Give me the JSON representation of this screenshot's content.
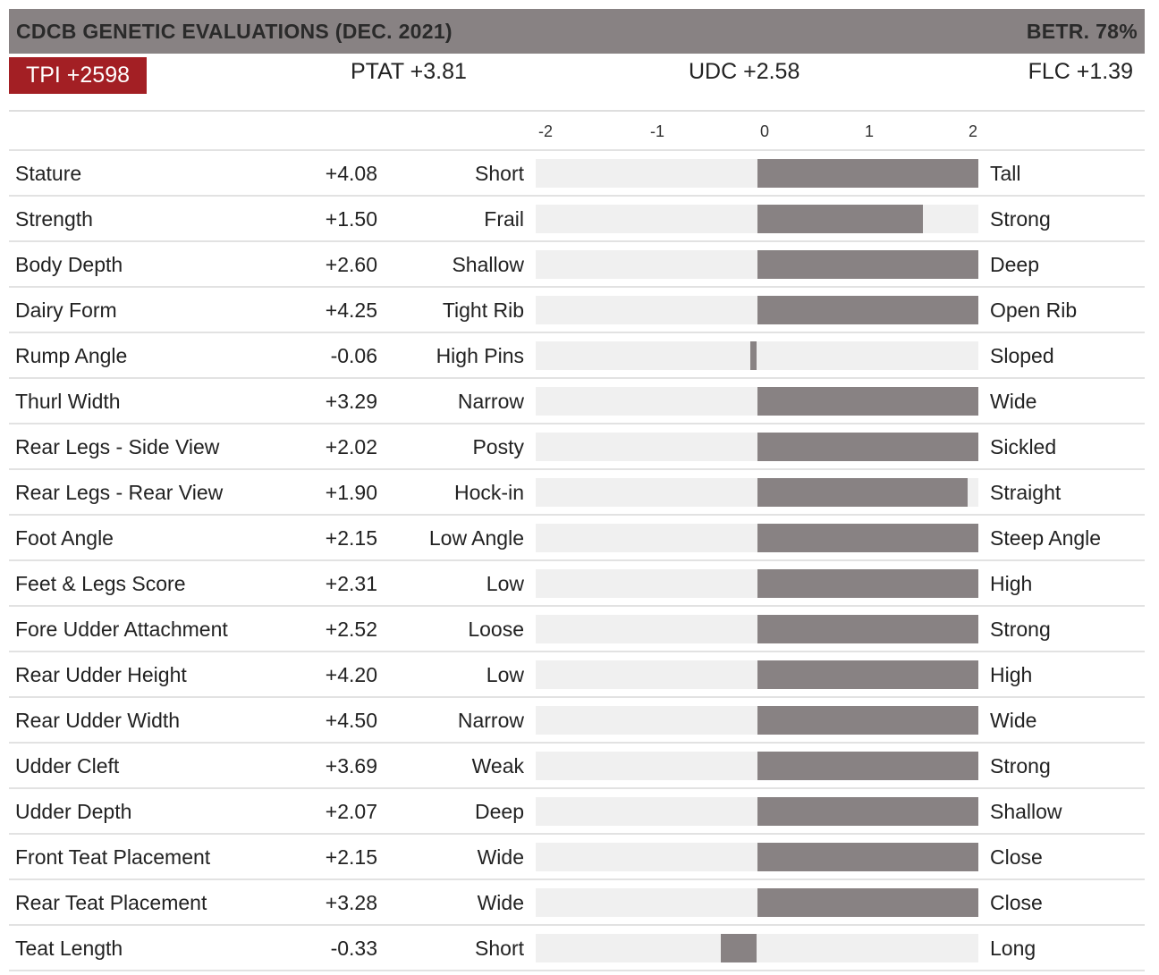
{
  "header": {
    "title": "CDCB GENETIC EVALUATIONS (DEC. 2021)",
    "reliability": "BETR. 78%"
  },
  "scores": {
    "tpi": "TPI +2598",
    "ptat": "PTAT +3.81",
    "udc": "UDC +2.58",
    "flc": "FLC +1.39"
  },
  "colors": {
    "header_bg": "#888283",
    "tpi_bg": "#a31f24",
    "bar": "#888283",
    "track": "#f0f0f0"
  },
  "chart_data": {
    "type": "bar",
    "orientation": "horizontal",
    "xlim": [
      -2,
      2
    ],
    "clipped_to_axis": true,
    "x_ticks": [
      "-2",
      "-1",
      "0",
      "1",
      "2"
    ],
    "traits": [
      {
        "name": "Stature",
        "value": 4.08,
        "label": "+4.08",
        "low": "Short",
        "high": "Tall"
      },
      {
        "name": "Strength",
        "value": 1.5,
        "label": "+1.50",
        "low": "Frail",
        "high": "Strong"
      },
      {
        "name": "Body Depth",
        "value": 2.6,
        "label": "+2.60",
        "low": "Shallow",
        "high": "Deep"
      },
      {
        "name": "Dairy Form",
        "value": 4.25,
        "label": "+4.25",
        "low": "Tight Rib",
        "high": "Open Rib"
      },
      {
        "name": "Rump Angle",
        "value": -0.06,
        "label": "-0.06",
        "low": "High Pins",
        "high": "Sloped"
      },
      {
        "name": "Thurl Width",
        "value": 3.29,
        "label": "+3.29",
        "low": "Narrow",
        "high": "Wide"
      },
      {
        "name": "Rear Legs - Side View",
        "value": 2.02,
        "label": "+2.02",
        "low": "Posty",
        "high": "Sickled"
      },
      {
        "name": "Rear Legs - Rear View",
        "value": 1.9,
        "label": "+1.90",
        "low": "Hock-in",
        "high": "Straight"
      },
      {
        "name": "Foot Angle",
        "value": 2.15,
        "label": "+2.15",
        "low": "Low Angle",
        "high": "Steep Angle"
      },
      {
        "name": "Feet & Legs Score",
        "value": 2.31,
        "label": "+2.31",
        "low": "Low",
        "high": "High"
      },
      {
        "name": "Fore Udder Attachment",
        "value": 2.52,
        "label": "+2.52",
        "low": "Loose",
        "high": "Strong"
      },
      {
        "name": "Rear Udder Height",
        "value": 4.2,
        "label": "+4.20",
        "low": "Low",
        "high": "High"
      },
      {
        "name": "Rear Udder Width",
        "value": 4.5,
        "label": "+4.50",
        "low": "Narrow",
        "high": "Wide"
      },
      {
        "name": "Udder Cleft",
        "value": 3.69,
        "label": "+3.69",
        "low": "Weak",
        "high": "Strong"
      },
      {
        "name": "Udder Depth",
        "value": 2.07,
        "label": "+2.07",
        "low": "Deep",
        "high": "Shallow"
      },
      {
        "name": "Front Teat Placement",
        "value": 2.15,
        "label": "+2.15",
        "low": "Wide",
        "high": "Close"
      },
      {
        "name": "Rear Teat Placement",
        "value": 3.28,
        "label": "+3.28",
        "low": "Wide",
        "high": "Close"
      },
      {
        "name": "Teat Length",
        "value": -0.33,
        "label": "-0.33",
        "low": "Short",
        "high": "Long"
      }
    ]
  }
}
